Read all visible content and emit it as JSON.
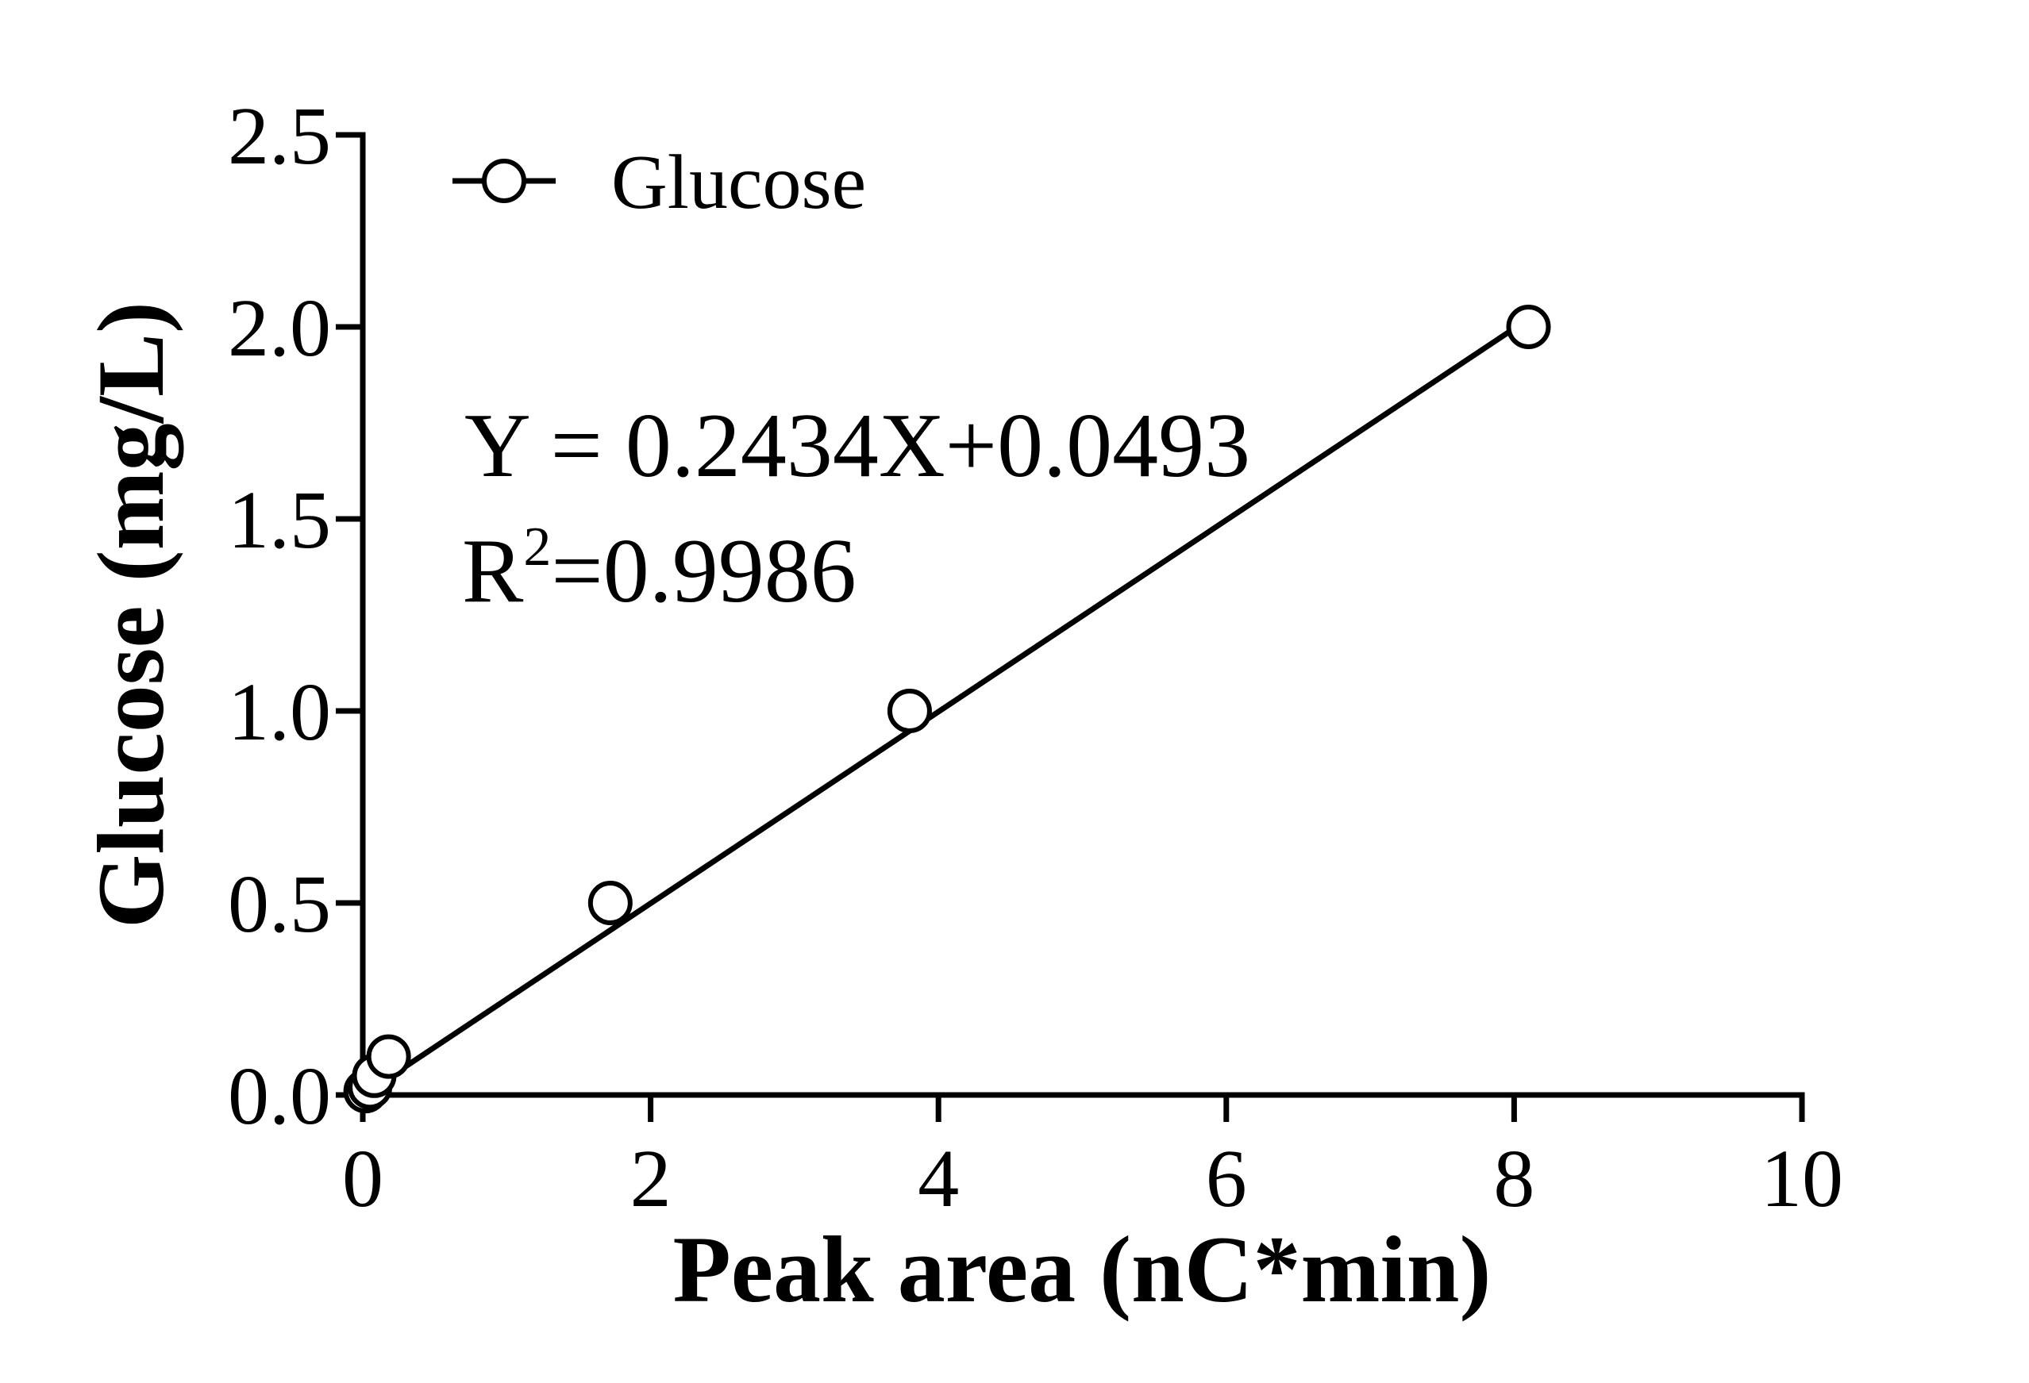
{
  "chart_data": {
    "type": "scatter",
    "title": "",
    "xlabel": "Peak area (nC*min)",
    "ylabel": "Glucose (mg/L)",
    "xlim": [
      0,
      10
    ],
    "ylim": [
      0,
      2.5
    ],
    "x_ticks": [
      "0",
      "2",
      "4",
      "6",
      "8",
      "10"
    ],
    "y_ticks": [
      "0.0",
      "0.5",
      "1.0",
      "1.5",
      "2.0",
      "2.5"
    ],
    "grid": false,
    "legend": {
      "placement": "top-left",
      "entries": [
        "Glucose"
      ]
    },
    "series": [
      {
        "name": "Glucose",
        "marker": "open-circle",
        "points": [
          {
            "x": 0.02,
            "y": 0.01
          },
          {
            "x": 0.05,
            "y": 0.02
          },
          {
            "x": 0.08,
            "y": 0.05
          },
          {
            "x": 0.18,
            "y": 0.1
          },
          {
            "x": 1.72,
            "y": 0.5
          },
          {
            "x": 3.8,
            "y": 1.0
          },
          {
            "x": 8.1,
            "y": 2.0
          }
        ]
      }
    ],
    "fit": {
      "slope": 0.2434,
      "intercept": 0.0493,
      "x_range": [
        0,
        8.1
      ]
    },
    "annotations": {
      "equation": "Y = 0.2434X+0.0493",
      "r2_prefix": "R",
      "r2_sup": "2",
      "r2_value": "=0.9986"
    },
    "colors": {
      "line": "#000000",
      "marker_fill": "#ffffff"
    }
  }
}
